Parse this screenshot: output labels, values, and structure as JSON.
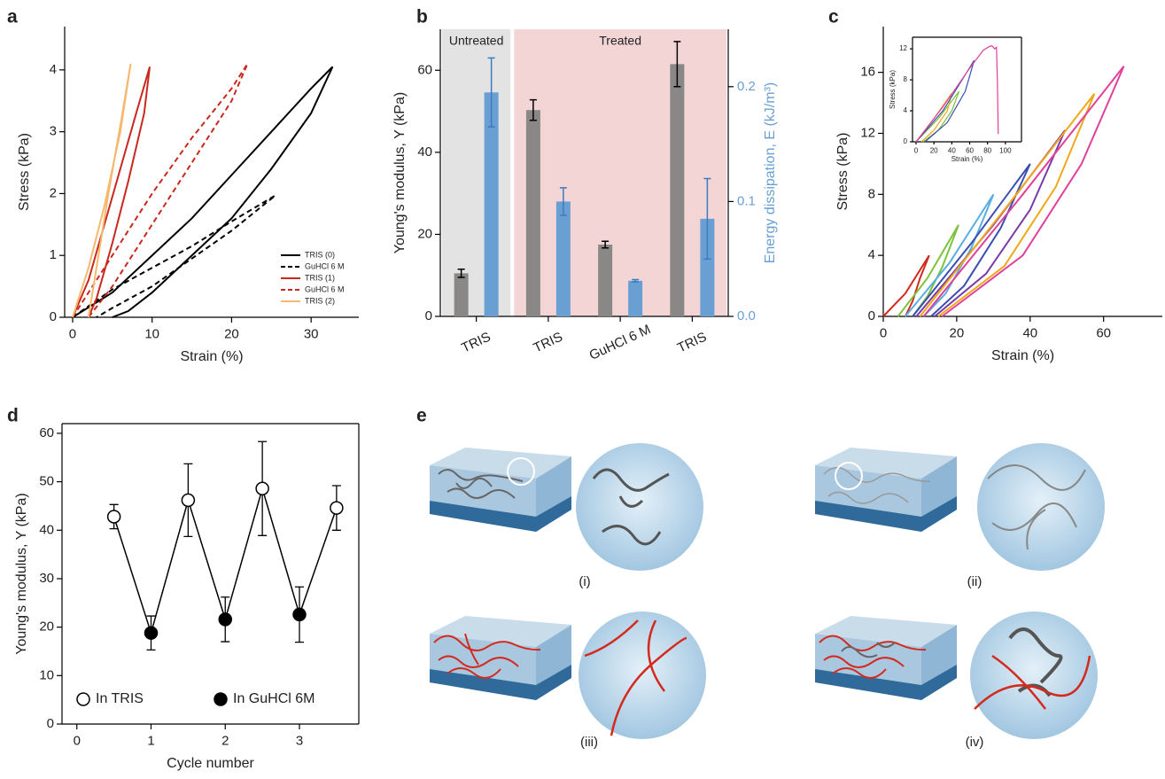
{
  "chart_data": [
    {
      "panel": "a",
      "type": "line",
      "x_label": "Strain (%)",
      "y_label": "Stress (kPa)",
      "xlim": [
        -1,
        36
      ],
      "ylim": [
        0,
        4.7
      ],
      "xticks": [
        0,
        10,
        20,
        30
      ],
      "yticks": [
        0,
        1,
        2,
        3,
        4
      ],
      "legend_position": "lower right",
      "series": [
        {
          "name": "TRIS (0)",
          "color": "#000000",
          "dash": false,
          "x": [
            0,
            5,
            10,
            15,
            20,
            25,
            30,
            32.7,
            30,
            25,
            20,
            15,
            10,
            7,
            5
          ],
          "values": [
            0,
            0.4,
            1,
            1.6,
            2.3,
            3,
            3.7,
            4.05,
            3.3,
            2.4,
            1.6,
            1,
            0.4,
            0.1,
            0
          ]
        },
        {
          "name": "GuHCl 6 M",
          "color": "#000000",
          "dash": true,
          "x": [
            0,
            5,
            10,
            15,
            20,
            25.5,
            20,
            15,
            10,
            5,
            3
          ],
          "values": [
            0,
            0.45,
            0.8,
            1.15,
            1.55,
            1.97,
            1.4,
            0.95,
            0.5,
            0.15,
            0
          ]
        },
        {
          "name": "TRIS (1)",
          "color": "#c8281e",
          "dash": false,
          "x": [
            0,
            2,
            4,
            6,
            8,
            9.7,
            9,
            7,
            5,
            3,
            2
          ],
          "values": [
            0,
            0.6,
            1.5,
            2.4,
            3.3,
            4.05,
            3.3,
            2.2,
            1.2,
            0.3,
            0
          ]
        },
        {
          "name": "GuHCl 6 M",
          "color": "#c8281e",
          "dash": true,
          "x": [
            0,
            5,
            10,
            15,
            20,
            22,
            20,
            15,
            10,
            5,
            2
          ],
          "values": [
            0,
            1,
            2,
            2.9,
            3.7,
            4.1,
            3.5,
            2.5,
            1.5,
            0.5,
            0
          ]
        },
        {
          "name": "TRIS (2)",
          "color": "#f5b96e",
          "dash": false,
          "x": [
            0,
            2,
            4,
            6,
            7.3,
            6,
            4.5,
            3,
            2
          ],
          "values": [
            0,
            0.8,
            1.8,
            3,
            4.1,
            3.1,
            2,
            0.8,
            0
          ]
        }
      ]
    },
    {
      "panel": "b",
      "type": "bar",
      "categories": [
        "TRIS",
        "TRIS",
        "GuHCl 6 M",
        "TRIS"
      ],
      "regions": [
        {
          "label": "Untreated",
          "color": "#e3e3e3"
        },
        {
          "label": "Treated",
          "color": "#f3d5d6"
        }
      ],
      "y_label": "Young's modulus, Y (kPa)",
      "y2_label": "Energy dissipation, E (kJ/m³)",
      "ylim": [
        0,
        70
      ],
      "yticks": [
        0,
        20,
        40,
        60
      ],
      "y2lim": [
        0,
        0.25
      ],
      "y2ticks": [
        {
          "value": 0,
          "label": "0.0"
        },
        0.1,
        0.2
      ],
      "series": [
        {
          "color": "#8a8886",
          "error_color": "#000000",
          "values": [
            10.5,
            50.3,
            17.5,
            61.5
          ],
          "errors": [
            1,
            2.5,
            0.8,
            5.5
          ]
        },
        {
          "axis": "y2",
          "color": "#6a9fd4",
          "error_color": "#3b7cc0",
          "values": [
            0.195,
            0.1,
            0.031,
            0.085
          ],
          "errors": [
            0.03,
            0.012,
            0.001,
            0.035
          ]
        }
      ]
    },
    {
      "panel": "c",
      "type": "line",
      "x_label": "Strain (%)",
      "y_label": "Stress (kPa)",
      "xlim": [
        0,
        76
      ],
      "ylim": [
        0,
        19
      ],
      "xticks": [
        0,
        20,
        40,
        60
      ],
      "yticks": [
        0,
        4,
        8,
        12,
        16
      ],
      "series": [
        {
          "color": "#d42a1e",
          "x": [
            0,
            6,
            12.5,
            10,
            8,
            6
          ],
          "values": [
            0,
            1.5,
            4,
            2.5,
            1,
            0
          ]
        },
        {
          "color": "#7cc23a",
          "x": [
            4,
            12,
            20.5,
            16,
            12,
            8
          ],
          "values": [
            0,
            2.5,
            6,
            3.2,
            1.3,
            0
          ]
        },
        {
          "color": "#5aaee0",
          "x": [
            6,
            18,
            30,
            24,
            17,
            11
          ],
          "values": [
            0,
            3.5,
            8,
            4.5,
            1.5,
            0
          ]
        },
        {
          "color": "#3a4fb0",
          "x": [
            8,
            24,
            40,
            32,
            22,
            13
          ],
          "values": [
            0,
            4.8,
            10,
            5.8,
            2,
            0
          ]
        },
        {
          "color": "#7a3aa8",
          "x": [
            9,
            30,
            49.5,
            40,
            28,
            14
          ],
          "values": [
            0,
            6,
            12.2,
            7,
            2.8,
            0
          ]
        },
        {
          "color": "#f0a818",
          "x": [
            10,
            33,
            57.5,
            47,
            33,
            15
          ],
          "values": [
            0,
            7,
            14.6,
            8.5,
            3.3,
            0
          ]
        },
        {
          "color": "#e0409a",
          "x": [
            11,
            38,
            65.5,
            54,
            38,
            16
          ],
          "values": [
            0,
            8,
            16.4,
            10,
            4,
            0
          ]
        }
      ]
    },
    {
      "type": "line",
      "x_label": "Strain (%)",
      "y_label": "Stress (kPa)",
      "xlim": [
        -4,
        118
      ],
      "ylim": [
        0,
        13.5
      ],
      "xticks": [
        0,
        20,
        40,
        60,
        80,
        100
      ],
      "yticks": [
        0,
        4,
        8,
        12
      ],
      "series": [
        {
          "color": "#7cc23a",
          "x": [
            0,
            25,
            48,
            40,
            25,
            8
          ],
          "values": [
            0,
            3,
            6.5,
            4,
            1.5,
            0
          ]
        },
        {
          "color": "#f0a818",
          "x": [
            0,
            20,
            40,
            35,
            20,
            6
          ],
          "values": [
            0,
            3,
            6.3,
            4,
            1.5,
            0
          ]
        },
        {
          "color": "#3a4fb0",
          "x": [
            0,
            30,
            65,
            55,
            35,
            10
          ],
          "values": [
            0,
            4,
            10.5,
            6.5,
            2.5,
            0
          ]
        },
        {
          "color": "#e0409a",
          "x": [
            0,
            30,
            60,
            75,
            82,
            85,
            88,
            90,
            91,
            92
          ],
          "values": [
            0,
            4.5,
            9.5,
            11.8,
            12.3,
            12.4,
            12,
            12.2,
            8,
            1
          ]
        }
      ]
    },
    {
      "panel": "d",
      "type": "line",
      "x_label": "Cycle number",
      "y_label": "Young's modulus, Y (kPa)",
      "xlim": [
        -0.2,
        3.8
      ],
      "ylim": [
        0,
        62
      ],
      "xticks": [
        0,
        1,
        2,
        3
      ],
      "yticks": [
        0,
        10,
        20,
        30,
        40,
        50,
        60
      ],
      "color": "#000000",
      "x": [
        0.5,
        1,
        1.5,
        2,
        2.5,
        3,
        3.5
      ],
      "values": [
        42.8,
        18.8,
        46.2,
        21.6,
        48.6,
        22.6,
        44.6
      ],
      "errors": [
        2.5,
        3.5,
        7.5,
        4.6,
        9.7,
        5.7,
        4.6
      ],
      "point_fill": [
        "#ffffff",
        "#000000",
        "#ffffff",
        "#000000",
        "#ffffff",
        "#000000",
        "#ffffff"
      ],
      "legend_position": "lower left",
      "legend_entries": [
        {
          "name": "In TRIS",
          "fill": "#ffffff"
        },
        {
          "name": "In GuHCl 6M",
          "fill": "#000000"
        }
      ]
    }
  ],
  "illustration": {
    "panel": "e",
    "labels": [
      "(i)",
      "(ii)",
      "(iii)",
      "(iv)"
    ]
  }
}
